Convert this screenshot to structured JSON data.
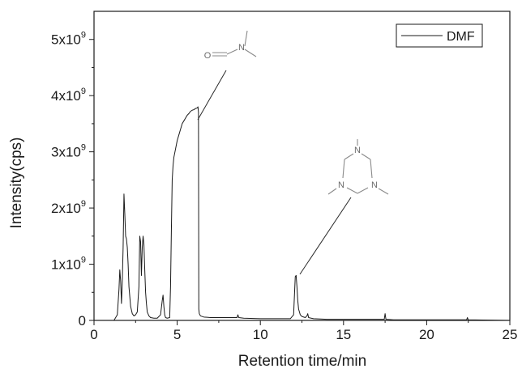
{
  "chart_data": {
    "type": "line",
    "xlabel": "Retention time/min",
    "ylabel": "Intensity(cps)",
    "xlim": [
      0,
      25
    ],
    "ylim": [
      0,
      5500000000.0
    ],
    "x_ticks": [
      0,
      5,
      10,
      15,
      20,
      25
    ],
    "x_tick_labels": [
      "0",
      "5",
      "10",
      "15",
      "20",
      "25"
    ],
    "y_ticks": [
      0,
      1000000000.0,
      2000000000.0,
      3000000000.0,
      4000000000.0,
      5000000000.0
    ],
    "y_tick_labels": [
      {
        "mantissa": "0",
        "exp": ""
      },
      {
        "mantissa": "1x10",
        "exp": "9"
      },
      {
        "mantissa": "2x10",
        "exp": "9"
      },
      {
        "mantissa": "3x10",
        "exp": "9"
      },
      {
        "mantissa": "4x10",
        "exp": "9"
      },
      {
        "mantissa": "5x10",
        "exp": "9"
      }
    ],
    "grid": false,
    "legend_position": "top-right",
    "series": [
      {
        "name": "DMF",
        "color": "#1a1a1a",
        "x": [
          0,
          1.2,
          1.4,
          1.5,
          1.55,
          1.6,
          1.65,
          1.7,
          1.75,
          1.8,
          1.85,
          1.9,
          1.95,
          2.0,
          2.05,
          2.1,
          2.2,
          2.3,
          2.4,
          2.5,
          2.6,
          2.7,
          2.75,
          2.8,
          2.85,
          2.9,
          2.95,
          3.0,
          3.05,
          3.1,
          3.15,
          3.2,
          3.3,
          3.4,
          3.6,
          3.8,
          4.0,
          4.1,
          4.15,
          4.2,
          4.25,
          4.3,
          4.4,
          4.55,
          4.6,
          4.65,
          4.7,
          4.75,
          4.8,
          4.9,
          5.0,
          5.1,
          5.2,
          5.3,
          5.4,
          5.5,
          5.6,
          5.7,
          5.8,
          5.9,
          6.0,
          6.1,
          6.2,
          6.25,
          6.28,
          6.3,
          6.33,
          6.4,
          6.6,
          7.0,
          8.0,
          8.6,
          8.65,
          8.7,
          9.0,
          10.0,
          11.0,
          11.8,
          12.0,
          12.05,
          12.1,
          12.15,
          12.2,
          12.25,
          12.3,
          12.4,
          12.5,
          12.7,
          12.8,
          12.85,
          12.9,
          13.2,
          14.0,
          15.0,
          17.0,
          17.45,
          17.5,
          17.55,
          18.0,
          20.0,
          22.0,
          22.4,
          22.45,
          22.5,
          25.0
        ],
        "y": [
          0.0,
          0.0,
          100000000.0,
          550000000.0,
          900000000.0,
          700000000.0,
          300000000.0,
          700000000.0,
          1300000000.0,
          2250000000.0,
          1900000000.0,
          1500000000.0,
          1450000000.0,
          1300000000.0,
          1000000000.0,
          600000000.0,
          250000000.0,
          120000000.0,
          80000000.0,
          100000000.0,
          150000000.0,
          600000000.0,
          1500000000.0,
          1400000000.0,
          800000000.0,
          1300000000.0,
          1500000000.0,
          1350000000.0,
          900000000.0,
          500000000.0,
          300000000.0,
          150000000.0,
          80000000.0,
          50000000.0,
          40000000.0,
          40000000.0,
          100000000.0,
          350000000.0,
          450000000.0,
          250000000.0,
          100000000.0,
          50000000.0,
          40000000.0,
          50000000.0,
          600000000.0,
          1600000000.0,
          2500000000.0,
          2750000000.0,
          2900000000.0,
          3050000000.0,
          3200000000.0,
          3300000000.0,
          3400000000.0,
          3500000000.0,
          3550000000.0,
          3600000000.0,
          3650000000.0,
          3680000000.0,
          3720000000.0,
          3740000000.0,
          3750000000.0,
          3770000000.0,
          3780000000.0,
          3800000000.0,
          3700000000.0,
          200000000.0,
          120000000.0,
          80000000.0,
          60000000.0,
          50000000.0,
          50000000.0,
          50000000.0,
          100000000.0,
          50000000.0,
          40000000.0,
          30000000.0,
          30000000.0,
          30000000.0,
          100000000.0,
          450000000.0,
          780000000.0,
          800000000.0,
          600000000.0,
          350000000.0,
          200000000.0,
          100000000.0,
          70000000.0,
          50000000.0,
          80000000.0,
          120000000.0,
          50000000.0,
          30000000.0,
          20000000.0,
          20000000.0,
          20000000.0,
          20000000.0,
          120000000.0,
          20000000.0,
          10000000.0,
          10000000.0,
          10000000.0,
          10000000.0,
          50000000.0,
          10000000.0,
          0.0
        ]
      }
    ],
    "annotations": [
      {
        "label": "N,N-dimethylformamide structure",
        "x": 6.28,
        "y": 3700000000.0,
        "text_atoms": [
          "O",
          "N"
        ]
      },
      {
        "label": "1,3,5-trimethylhexahydro-1,3,5-triazine structure",
        "x": 12.2,
        "y": 800000000.0,
        "text_atoms": [
          "N",
          "N",
          "N"
        ]
      }
    ]
  }
}
